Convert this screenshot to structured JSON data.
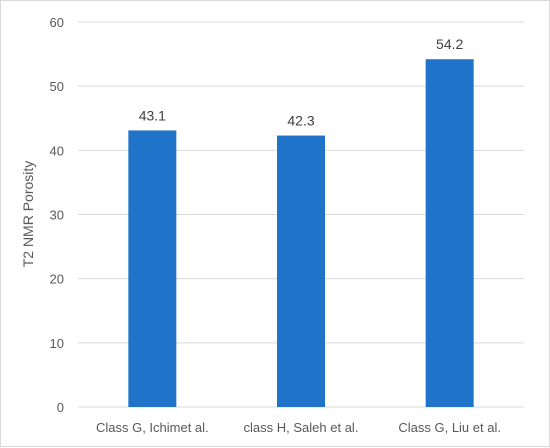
{
  "chart_data": {
    "type": "bar",
    "title": "",
    "xlabel": "",
    "ylabel": "T2 NMR Porosity",
    "categories": [
      "Class G, Ichimet al.",
      "class H, Saleh et al.",
      "Class G, Liu et al."
    ],
    "values": [
      43.1,
      42.3,
      54.2
    ],
    "data_labels": [
      "43.1",
      "42.3",
      "54.2"
    ],
    "ylim": [
      0,
      60
    ],
    "yticks": [
      0,
      10,
      20,
      30,
      40,
      50,
      60
    ],
    "grid": true,
    "legend": "none",
    "colors": {
      "bar": "#1f73c9",
      "grid": "#d9d9d9",
      "text": "#595959"
    }
  }
}
